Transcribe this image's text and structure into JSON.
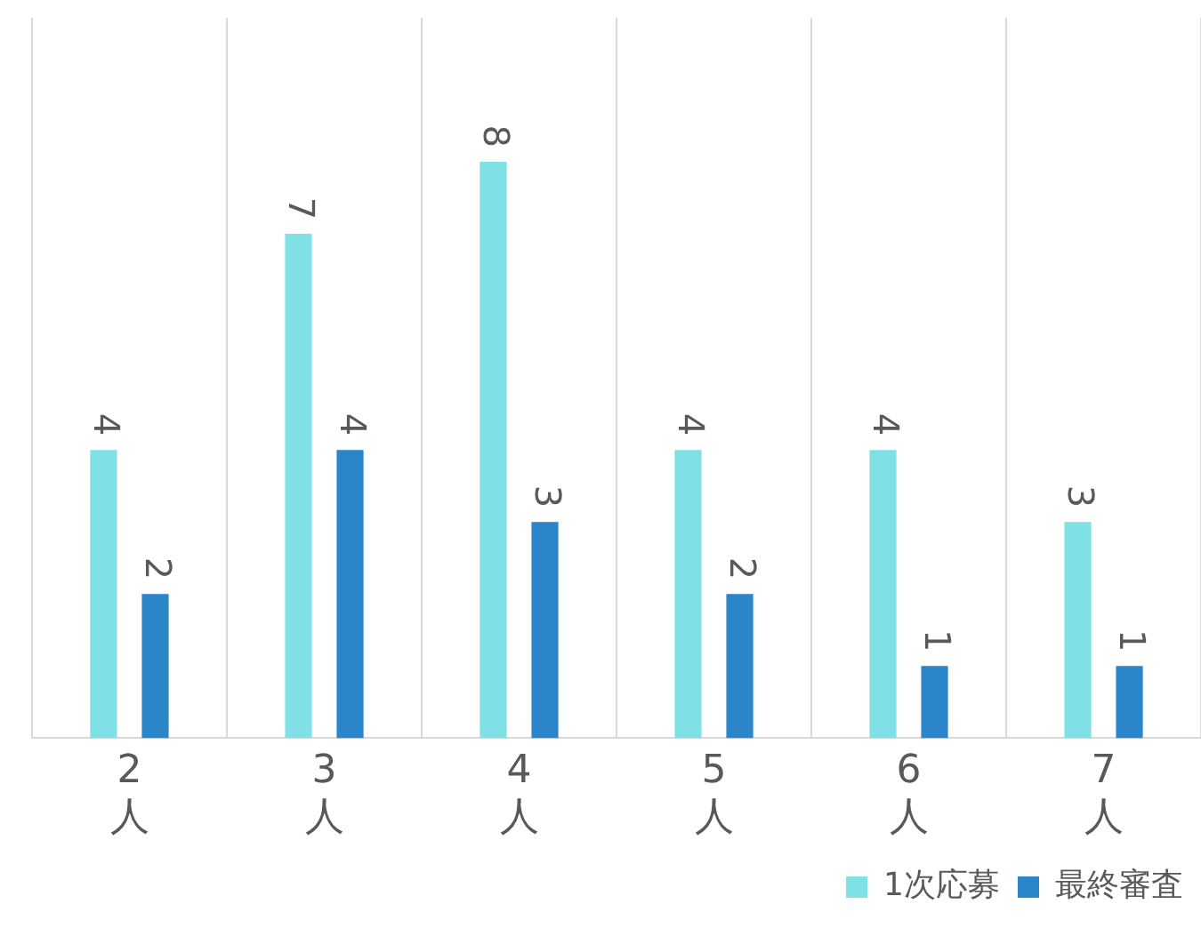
{
  "chart_data": {
    "type": "bar",
    "categories": [
      "2人",
      "3人",
      "4人",
      "5人",
      "6人",
      "7人"
    ],
    "series": [
      {
        "name": "1次応募",
        "color": "#7fe0e6",
        "values": [
          4,
          7,
          8,
          4,
          4,
          3
        ]
      },
      {
        "name": "最終審査",
        "color": "#2a85c9",
        "values": [
          2,
          4,
          3,
          2,
          1,
          1
        ]
      }
    ],
    "ylim": [
      0,
      10
    ],
    "grid": "x",
    "legend": "bottom right",
    "data_labels": true
  }
}
